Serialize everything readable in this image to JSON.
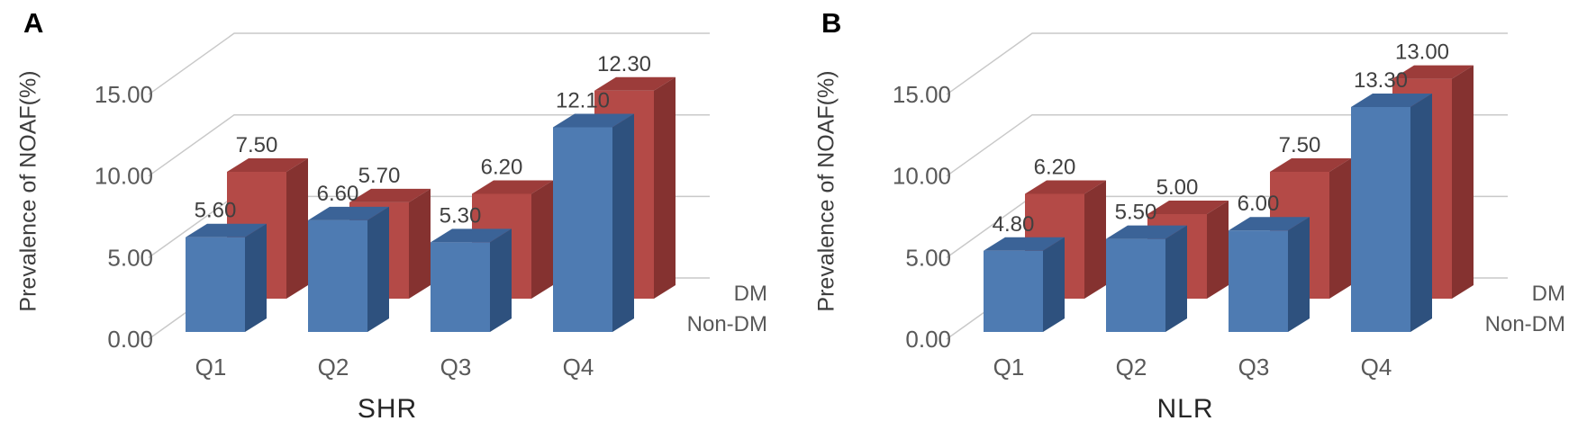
{
  "palette": {
    "background": "#ffffff",
    "gridline": "#c9c9c9",
    "axis_text": "#595959",
    "value_text": "#404040",
    "category_text": "#595959",
    "series_label_text": "#595959",
    "axis_title_text": "#3d3d3d",
    "panel_letter_text": "#000000"
  },
  "chart_data": [
    {
      "panel": "A",
      "type": "bar",
      "projection": "3d-clustered-depth",
      "title": "",
      "xlabel": "SHR",
      "ylabel": "Prevalence of NOAF(%)",
      "categories": [
        "Q1",
        "Q2",
        "Q3",
        "Q4"
      ],
      "series": [
        {
          "name": "Non-DM",
          "row": "front",
          "values": [
            5.6,
            6.6,
            5.3,
            12.1
          ],
          "face_colors": {
            "front": "#4E7BB2",
            "top": "#3B6397",
            "side": "#2E517E"
          }
        },
        {
          "name": "DM",
          "row": "back",
          "values": [
            7.5,
            5.7,
            6.2,
            12.3
          ],
          "face_colors": {
            "front": "#B44A47",
            "top": "#9C3C3A",
            "side": "#853230"
          }
        }
      ],
      "value_label_decimals": 2,
      "yticks": [
        0,
        5,
        10,
        15
      ],
      "ytick_labels": [
        "0.00",
        "5.00",
        "10.00",
        "15.00"
      ],
      "ylim": [
        0,
        15
      ],
      "gridlines": true,
      "legend_position": "right-depth-axis"
    },
    {
      "panel": "B",
      "type": "bar",
      "projection": "3d-clustered-depth",
      "title": "",
      "xlabel": "NLR",
      "ylabel": "Prevalence of NOAF(%)",
      "categories": [
        "Q1",
        "Q2",
        "Q3",
        "Q4"
      ],
      "series": [
        {
          "name": "Non-DM",
          "row": "front",
          "values": [
            4.8,
            5.5,
            6.0,
            13.3
          ],
          "face_colors": {
            "front": "#4E7BB2",
            "top": "#3B6397",
            "side": "#2E517E"
          }
        },
        {
          "name": "DM",
          "row": "back",
          "values": [
            6.2,
            5.0,
            7.5,
            13.0
          ],
          "face_colors": {
            "front": "#B44A47",
            "top": "#9C3C3A",
            "side": "#853230"
          }
        }
      ],
      "value_label_decimals": 2,
      "yticks": [
        0,
        5,
        10,
        15
      ],
      "ytick_labels": [
        "0.00",
        "5.00",
        "10.00",
        "15.00"
      ],
      "ylim": [
        0,
        15
      ],
      "gridlines": true,
      "legend_position": "right-depth-axis"
    }
  ]
}
